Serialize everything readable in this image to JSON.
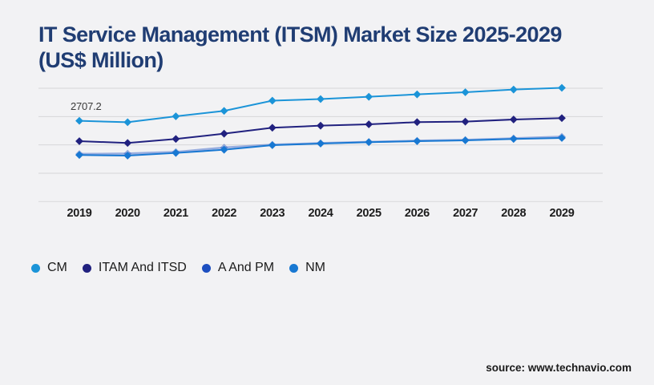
{
  "title": "IT Service Management (ITSM) Market Size 2025-2029 (US$ Million)",
  "source_label": "source: www.technavio.com",
  "colors": {
    "background": "#f2f2f4",
    "title_text": "#203d73",
    "gridline": "#d7d7d9",
    "axis_label_text": "#1c1c1c",
    "annotation_text": "#3a3a3a",
    "legend_text": "#1b1b1b",
    "source_text": "#1a1a1a"
  },
  "chart_data": {
    "type": "line",
    "title": "IT Service Management (ITSM) Market Size 2025-2029 (US$ Million)",
    "categories": [
      "2019",
      "2020",
      "2021",
      "2022",
      "2023",
      "2024",
      "2025",
      "2026",
      "2027",
      "2028",
      "2029"
    ],
    "series": [
      {
        "name": "CM",
        "color": "#1b94d8",
        "values": [
          2707.2,
          2660.1,
          2859.5,
          3040.3,
          3383.9,
          3437.7,
          3513.0,
          3593.7,
          3666.3,
          3755.1,
          3814.4
        ]
      },
      {
        "name": "ITAM And ITSD",
        "color": "#21217f",
        "values": [
          2025.6,
          1963.7,
          2098.2,
          2275.7,
          2474.8,
          2544.7,
          2590.5,
          2663.1,
          2679.2,
          2751.9,
          2797.6
        ]
      },
      {
        "name": "A And PM",
        "color": "#1d4fc0",
        "muted": true,
        "values": [
          1595.2,
          1608.6,
          1662.4,
          1810.4,
          1904.5,
          1958.3,
          1998.7,
          2039.0,
          2065.9,
          2119.7,
          2173.5
        ]
      },
      {
        "name": "NM",
        "color": "#1878d2",
        "values": [
          1560.2,
          1541.4,
          1630.1,
          1737.7,
          1891.1,
          1944.9,
          1990.6,
          2025.6,
          2052.5,
          2098.2,
          2133.2
        ]
      }
    ],
    "ylim": [
      0,
      3800
    ],
    "grid": true,
    "gridline_count": 5,
    "legend_position": "bottom-left",
    "marker": "diamond",
    "annotations": [
      {
        "text": "2707.2",
        "series": "CM",
        "x": "2019",
        "value": 2707.2
      }
    ]
  }
}
